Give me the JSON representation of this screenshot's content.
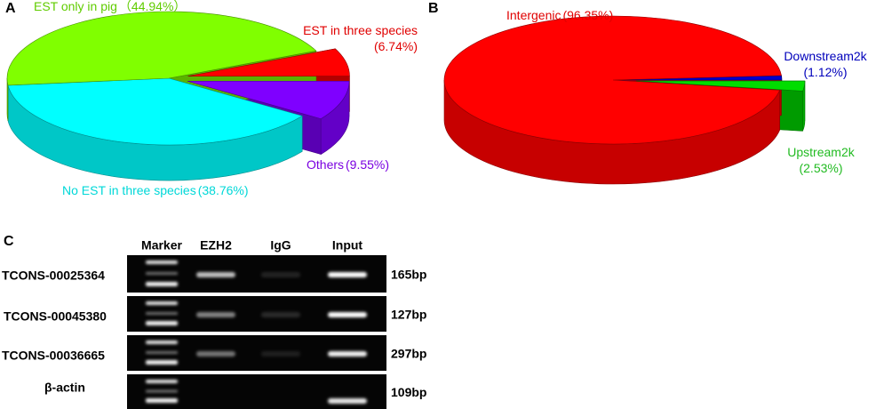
{
  "chart_data": [
    {
      "type": "pie3d",
      "label": "A",
      "categories": [
        "EST in three species",
        "Others",
        "No EST in three species",
        "EST only in pig"
      ],
      "values": [
        6.74,
        9.55,
        38.76,
        44.94
      ],
      "value_labels": [
        "(6.74%)",
        "(9.55%)",
        "(38.76%)",
        "（44.94%）"
      ],
      "colors": [
        "#ff0000",
        "#7f00ff",
        "#00ffff",
        "#80ff00"
      ],
      "label_colors": [
        "#e00000",
        "#7a00e0",
        "#00d8d8",
        "#60cc00"
      ],
      "explode": [
        true,
        true,
        false,
        false
      ]
    },
    {
      "type": "pie3d",
      "label": "B",
      "categories": [
        "Downstream2k",
        "Upstream2k",
        "Intergenic"
      ],
      "values": [
        1.12,
        2.53,
        96.35
      ],
      "value_labels": [
        "(1.12%)",
        "(2.53%)",
        "(96.35%)"
      ],
      "colors": [
        "#0000cc",
        "#00dd00",
        "#ff0000"
      ],
      "label_colors": [
        "#0000bb",
        "#22bb22",
        "#e00000"
      ],
      "explode": [
        false,
        true,
        false
      ]
    }
  ],
  "panel_c": {
    "label": "C",
    "columns": [
      "Marker",
      "EZH2",
      "IgG",
      "Input"
    ],
    "rows": [
      {
        "name": "TCONS-00025364",
        "size": "165bp"
      },
      {
        "name": "TCONS-00045380",
        "size": "127bp"
      },
      {
        "name": "TCONS-00036665",
        "size": "297bp"
      },
      {
        "name": "β-actin",
        "size": "109bp"
      }
    ]
  }
}
